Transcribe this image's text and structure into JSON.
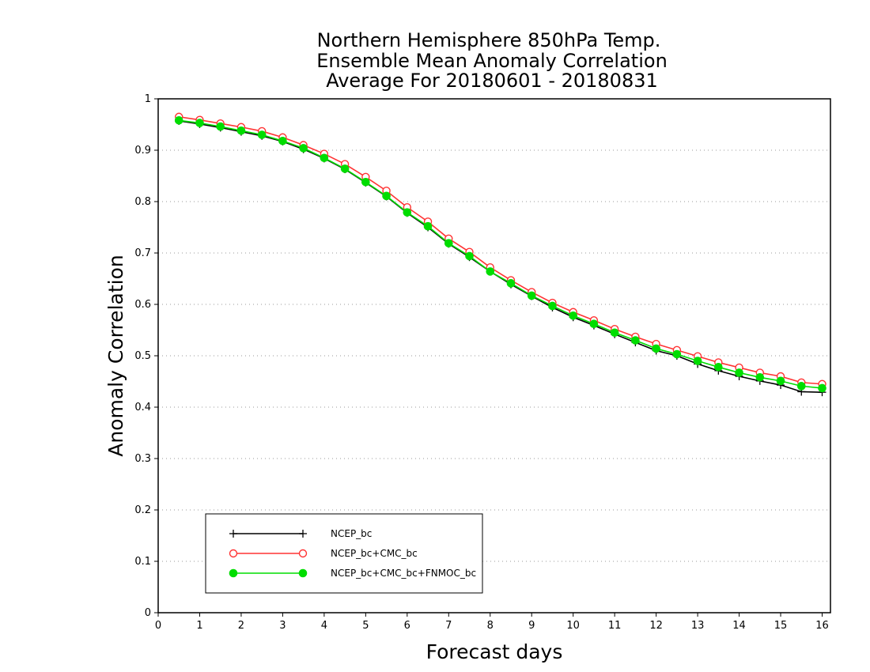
{
  "chart_data": {
    "type": "line",
    "title": [
      "Northern Hemisphere 850hPa Temp.",
      "Ensemble Mean Anomaly Correlation",
      "Average For 20180601 - 20180831"
    ],
    "xlabel": "Forecast days",
    "ylabel": "Anomaly Correlation",
    "xlim": [
      0,
      16.2
    ],
    "ylim": [
      0,
      1
    ],
    "xticks": [
      0,
      1,
      2,
      3,
      4,
      5,
      6,
      7,
      8,
      9,
      10,
      11,
      12,
      13,
      14,
      15,
      16
    ],
    "yticks": [
      0,
      0.1,
      0.2,
      0.3,
      0.4,
      0.5,
      0.6,
      0.7,
      0.8,
      0.9,
      1
    ],
    "ytick_labels": [
      "0",
      "0.1",
      "0.2",
      "0.3",
      "0.4",
      "0.5",
      "0.6",
      "0.7",
      "0.8",
      "0.9",
      "1"
    ],
    "grid": "horizontal dotted",
    "legend_position": "bottom-left",
    "x": [
      0.5,
      1.0,
      1.5,
      2.0,
      2.5,
      3.0,
      3.5,
      4.0,
      4.5,
      5.0,
      5.5,
      6.0,
      6.5,
      7.0,
      7.5,
      8.0,
      8.5,
      9.0,
      9.5,
      10.0,
      10.5,
      11.0,
      11.5,
      12.0,
      12.5,
      13.0,
      13.5,
      14.0,
      14.5,
      15.0,
      15.5,
      16.0
    ],
    "series": [
      {
        "name": "NCEP_bc",
        "color": "#000000",
        "marker": "plus",
        "values": [
          0.957,
          0.951,
          0.944,
          0.936,
          0.928,
          0.917,
          0.902,
          0.884,
          0.863,
          0.837,
          0.81,
          0.778,
          0.75,
          0.718,
          0.692,
          0.664,
          0.639,
          0.616,
          0.594,
          0.575,
          0.559,
          0.542,
          0.526,
          0.51,
          0.5,
          0.484,
          0.471,
          0.46,
          0.451,
          0.443,
          0.43,
          0.429
        ]
      },
      {
        "name": "NCEP_bc+CMC_bc",
        "color": "#ff3333",
        "marker": "open-circle",
        "values": [
          0.965,
          0.959,
          0.952,
          0.945,
          0.937,
          0.925,
          0.91,
          0.893,
          0.873,
          0.848,
          0.821,
          0.789,
          0.761,
          0.728,
          0.702,
          0.672,
          0.647,
          0.624,
          0.603,
          0.585,
          0.569,
          0.552,
          0.537,
          0.523,
          0.511,
          0.499,
          0.487,
          0.477,
          0.467,
          0.46,
          0.448,
          0.445
        ]
      },
      {
        "name": "NCEP_bc+CMC_bc+FNMOC_bc",
        "color": "#00dd00",
        "marker": "filled-circle",
        "values": [
          0.958,
          0.953,
          0.946,
          0.938,
          0.93,
          0.918,
          0.904,
          0.885,
          0.864,
          0.838,
          0.811,
          0.779,
          0.752,
          0.719,
          0.694,
          0.664,
          0.641,
          0.617,
          0.597,
          0.578,
          0.562,
          0.545,
          0.53,
          0.514,
          0.503,
          0.49,
          0.478,
          0.467,
          0.458,
          0.451,
          0.441,
          0.437
        ]
      }
    ]
  }
}
